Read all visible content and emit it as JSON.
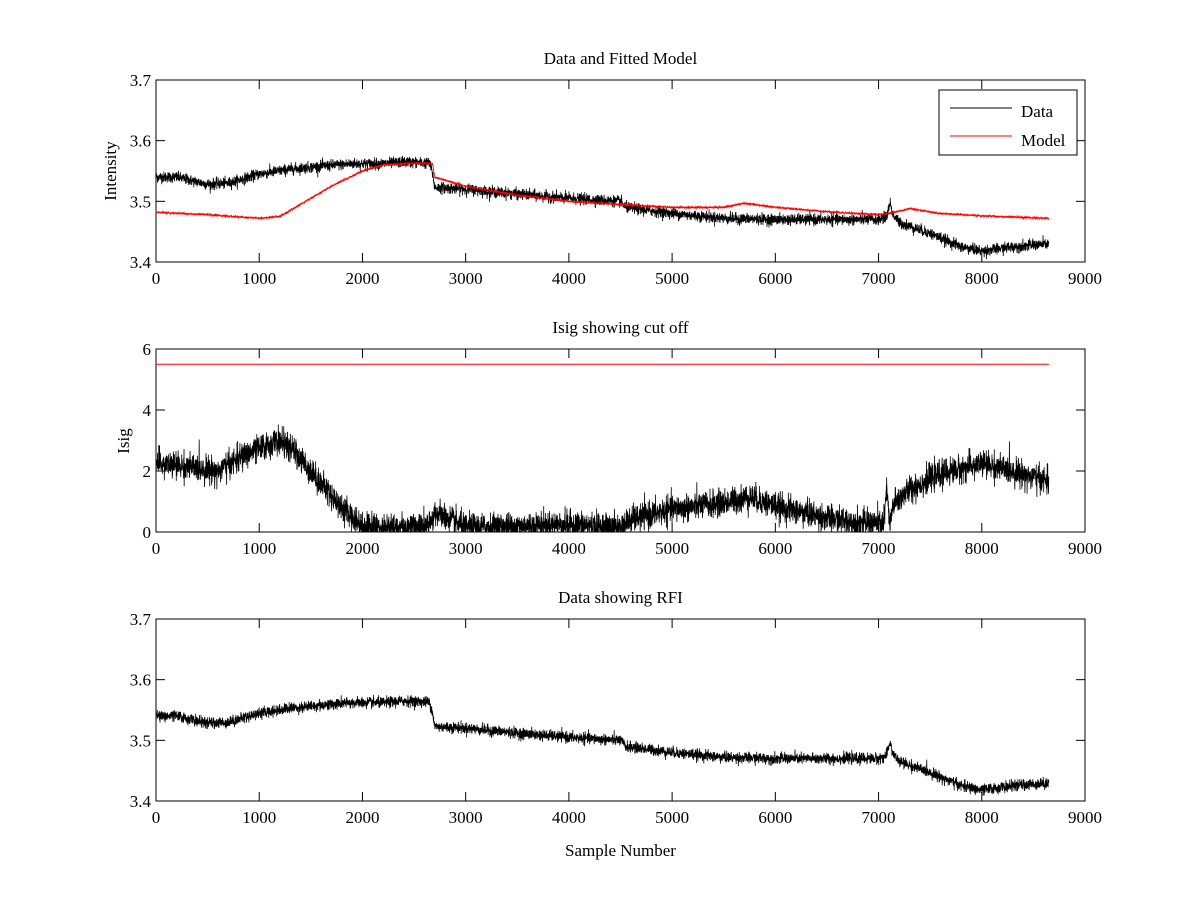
{
  "figure": {
    "background": "#ffffff"
  },
  "chart_data": [
    {
      "type": "line",
      "title": "Data and Fitted Model",
      "xlabel": "",
      "ylabel": "Intensity",
      "xlim": [
        0,
        9000
      ],
      "ylim": [
        3.4,
        3.7
      ],
      "xticks": [
        0,
        1000,
        2000,
        3000,
        4000,
        5000,
        6000,
        7000,
        8000,
        9000
      ],
      "yticks": [
        3.4,
        3.5,
        3.6,
        3.7
      ],
      "ytick_labels": [
        "3.4",
        "3.5",
        "3.6",
        "3.7"
      ],
      "grid": false,
      "legend": {
        "position": "top-right",
        "entries": [
          "Data",
          "Model"
        ]
      },
      "series": [
        {
          "name": "Data",
          "color": "#000000",
          "noise": 0.0045,
          "x": [
            0,
            200,
            500,
            700,
            1000,
            1300,
            1600,
            1900,
            2200,
            2400,
            2650,
            2680,
            2700,
            3000,
            3500,
            4000,
            4500,
            4550,
            5000,
            5500,
            6000,
            6500,
            7000,
            7080,
            7110,
            7140,
            7200,
            7500,
            7800,
            8000,
            8300,
            8650
          ],
          "y": [
            3.54,
            3.54,
            3.528,
            3.53,
            3.545,
            3.553,
            3.558,
            3.562,
            3.562,
            3.565,
            3.563,
            3.545,
            3.523,
            3.52,
            3.512,
            3.505,
            3.5,
            3.49,
            3.48,
            3.472,
            3.47,
            3.47,
            3.47,
            3.475,
            3.498,
            3.478,
            3.465,
            3.447,
            3.425,
            3.418,
            3.425,
            3.43
          ]
        },
        {
          "name": "Model",
          "color": "#ff0000",
          "noise": 0.0008,
          "x": [
            0,
            500,
            1000,
            1200,
            1400,
            1700,
            2000,
            2200,
            2500,
            2680,
            2700,
            3000,
            3500,
            4000,
            4500,
            5000,
            5500,
            5700,
            6000,
            6500,
            7000,
            7100,
            7300,
            7600,
            8000,
            8650
          ],
          "y": [
            3.482,
            3.478,
            3.472,
            3.475,
            3.495,
            3.525,
            3.55,
            3.56,
            3.563,
            3.562,
            3.54,
            3.525,
            3.51,
            3.5,
            3.495,
            3.49,
            3.49,
            3.497,
            3.49,
            3.483,
            3.478,
            3.48,
            3.488,
            3.48,
            3.476,
            3.472
          ]
        }
      ]
    },
    {
      "type": "line",
      "title": "Isig showing cut off",
      "xlabel": "",
      "ylabel": "Isig",
      "xlim": [
        0,
        9000
      ],
      "ylim": [
        0,
        6
      ],
      "xticks": [
        0,
        1000,
        2000,
        3000,
        4000,
        5000,
        6000,
        7000,
        8000,
        9000
      ],
      "yticks": [
        0,
        2,
        4,
        6
      ],
      "ytick_labels": [
        "0",
        "2",
        "4",
        "6"
      ],
      "grid": false,
      "series": [
        {
          "color": "#000000",
          "noise": 0.22,
          "floor": 0,
          "x": [
            0,
            300,
            600,
            900,
            1200,
            1350,
            1600,
            1800,
            2000,
            2300,
            2650,
            2700,
            2850,
            3000,
            3500,
            4000,
            4500,
            4600,
            5000,
            5500,
            5750,
            6000,
            6500,
            6800,
            7050,
            7080,
            7110,
            7140,
            7300,
            7600,
            8000,
            8300,
            8650
          ],
          "y": [
            2.25,
            2.15,
            2.0,
            2.6,
            3.0,
            2.6,
            1.6,
            0.8,
            0.2,
            0.15,
            0.2,
            0.65,
            0.4,
            0.15,
            0.2,
            0.25,
            0.15,
            0.4,
            0.75,
            0.95,
            1.15,
            0.85,
            0.45,
            0.3,
            0.3,
            1.4,
            0.15,
            0.9,
            1.4,
            1.9,
            2.25,
            2.0,
            1.65
          ]
        },
        {
          "color": "#ff0000",
          "noise": 0,
          "x": [
            0,
            8650
          ],
          "y": [
            5.5,
            5.5
          ]
        }
      ]
    },
    {
      "type": "line",
      "title": "Data showing RFI",
      "xlabel": "Sample Number",
      "ylabel": "",
      "xlim": [
        0,
        9000
      ],
      "ylim": [
        3.4,
        3.7
      ],
      "xticks": [
        0,
        1000,
        2000,
        3000,
        4000,
        5000,
        6000,
        7000,
        8000,
        9000
      ],
      "yticks": [
        3.4,
        3.5,
        3.6,
        3.7
      ],
      "ytick_labels": [
        "3.4",
        "3.5",
        "3.6",
        "3.7"
      ],
      "grid": false,
      "series": [
        {
          "color": "#000000",
          "noise": 0.0045,
          "x": [
            0,
            200,
            500,
            700,
            1000,
            1300,
            1600,
            1900,
            2200,
            2400,
            2650,
            2680,
            2700,
            3000,
            3500,
            4000,
            4500,
            4550,
            5000,
            5500,
            6000,
            6500,
            7000,
            7080,
            7110,
            7140,
            7200,
            7500,
            7800,
            8000,
            8300,
            8650
          ],
          "y": [
            3.54,
            3.54,
            3.528,
            3.53,
            3.545,
            3.553,
            3.558,
            3.562,
            3.562,
            3.565,
            3.563,
            3.545,
            3.523,
            3.52,
            3.512,
            3.505,
            3.5,
            3.49,
            3.48,
            3.472,
            3.47,
            3.47,
            3.47,
            3.475,
            3.498,
            3.478,
            3.465,
            3.447,
            3.425,
            3.418,
            3.425,
            3.43
          ]
        }
      ]
    }
  ]
}
